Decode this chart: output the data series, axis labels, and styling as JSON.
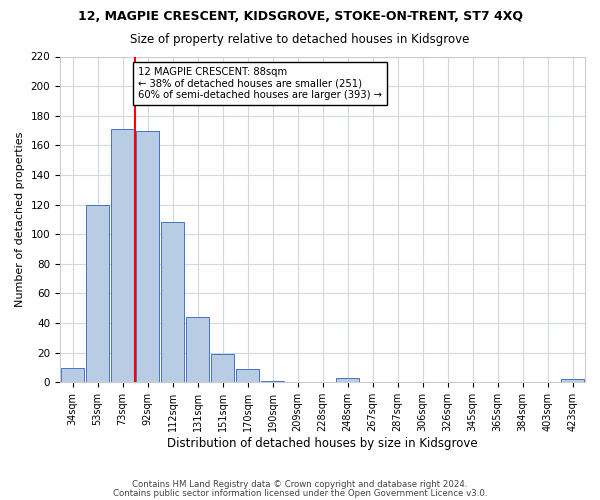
{
  "title": "12, MAGPIE CRESCENT, KIDSGROVE, STOKE-ON-TRENT, ST7 4XQ",
  "subtitle": "Size of property relative to detached houses in Kidsgrove",
  "xlabel": "Distribution of detached houses by size in Kidsgrove",
  "ylabel": "Number of detached properties",
  "bar_labels": [
    "34sqm",
    "53sqm",
    "73sqm",
    "92sqm",
    "112sqm",
    "131sqm",
    "151sqm",
    "170sqm",
    "190sqm",
    "209sqm",
    "228sqm",
    "248sqm",
    "267sqm",
    "287sqm",
    "306sqm",
    "326sqm",
    "345sqm",
    "365sqm",
    "384sqm",
    "403sqm",
    "423sqm"
  ],
  "bar_values": [
    10,
    120,
    171,
    170,
    108,
    44,
    19,
    9,
    1,
    0,
    0,
    3,
    0,
    0,
    0,
    0,
    0,
    0,
    0,
    0,
    2
  ],
  "bar_color": "#b8cce4",
  "bar_edge_color": "#4472c4",
  "vline_x": 2.5,
  "vline_color": "#ff0000",
  "annotation_text": "12 MAGPIE CRESCENT: 88sqm\n← 38% of detached houses are smaller (251)\n60% of semi-detached houses are larger (393) →",
  "annotation_box_color": "#ffffff",
  "annotation_box_edge": "#000000",
  "ylim": [
    0,
    220
  ],
  "yticks": [
    0,
    20,
    40,
    60,
    80,
    100,
    120,
    140,
    160,
    180,
    200,
    220
  ],
  "footer_line1": "Contains HM Land Registry data © Crown copyright and database right 2024.",
  "footer_line2": "Contains public sector information licensed under the Open Government Licence v3.0.",
  "bg_color": "#ffffff",
  "grid_color": "#d0d8e8"
}
